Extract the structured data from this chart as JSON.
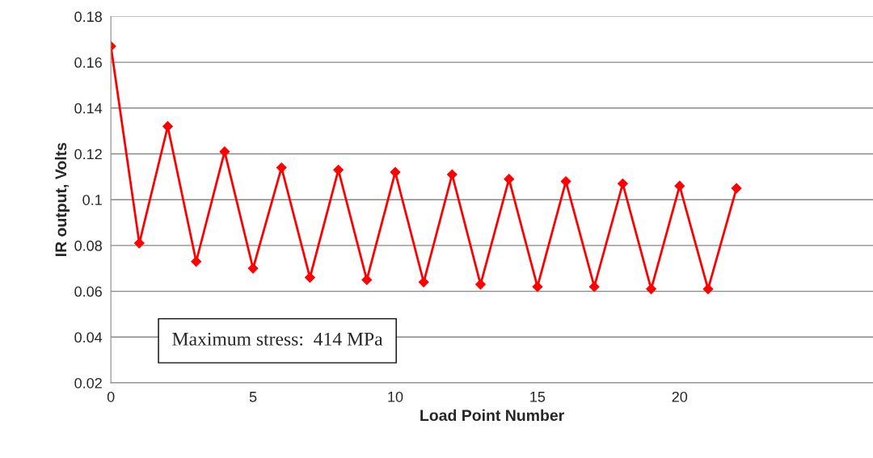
{
  "chart_data": {
    "type": "line",
    "xlabel": "Load Point Number",
    "ylabel": "IR output, Volts",
    "x": [
      0,
      1,
      2,
      3,
      4,
      5,
      6,
      7,
      8,
      9,
      10,
      11,
      12,
      13,
      14,
      15,
      16,
      17,
      18,
      19,
      20,
      21,
      22
    ],
    "series": [
      {
        "color": "#ff0000",
        "values": [
          0.167,
          0.081,
          0.132,
          0.073,
          0.121,
          0.07,
          0.114,
          0.066,
          0.113,
          0.065,
          0.112,
          0.064,
          0.111,
          0.063,
          0.109,
          0.062,
          0.108,
          0.062,
          0.107,
          0.061,
          0.106,
          0.061,
          0.105
        ]
      }
    ],
    "xlim": [
      0,
      26.8
    ],
    "xticks": [
      0,
      5,
      10,
      15,
      20
    ],
    "ylim": [
      0.02,
      0.18
    ],
    "yticks": [
      0.02,
      0.04,
      0.06,
      0.08,
      0.1,
      0.12,
      0.14,
      0.16,
      0.18
    ],
    "grid": "y",
    "marker": "diamond",
    "line_style": "solid",
    "legend": false,
    "annotations": [
      "Maximum stress:  414 MPa"
    ]
  }
}
